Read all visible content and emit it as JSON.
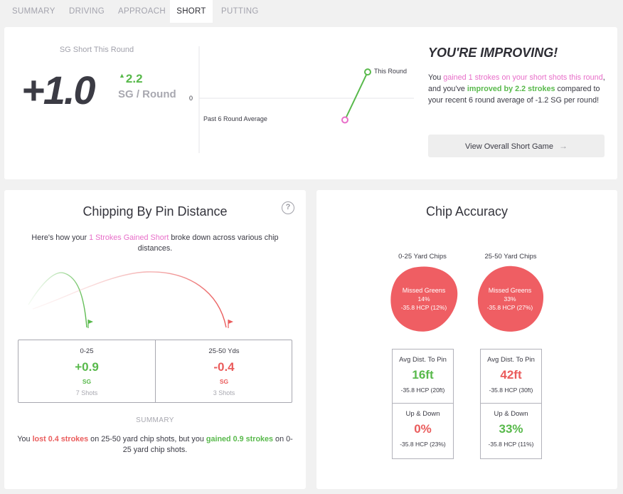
{
  "tabs": [
    {
      "label": "SUMMARY"
    },
    {
      "label": "DRIVING"
    },
    {
      "label": "APPROACH"
    },
    {
      "label": "SHORT",
      "active": true
    },
    {
      "label": "PUTTING"
    }
  ],
  "overview": {
    "label": "SG Short This Round",
    "value": "+1.0",
    "delta": "2.2",
    "unit": "SG / Round",
    "headline": "YOU'RE IMPROVING!",
    "message": {
      "p1": "You ",
      "pink": "gained 1 strokes on your short shots this round",
      "p2": ", and you've ",
      "green": "improved by 2.2 strokes",
      "p3": " compared to your recent 6 round average of -1.2 SG per round!"
    },
    "button": "View Overall Short Game"
  },
  "trend_chart": {
    "zero_label": "0",
    "this_round_label": "This Round",
    "average_label": "Past 6 Round Average",
    "this_round_value": 1.0,
    "average_value": -1.2
  },
  "chipping": {
    "title": "Chipping By Pin Distance",
    "help": "?",
    "intro": {
      "p1": "Here's how your ",
      "pink": "1 Strokes Gained Short",
      "p2": " broke down across various chip distances."
    },
    "columns": [
      {
        "label": "0-25",
        "value": "+0.9",
        "unit": "SG",
        "shots": "7 Shots"
      },
      {
        "label": "25-50 Yds",
        "value": "-0.4",
        "unit": "SG",
        "shots": "3 Shots"
      }
    ],
    "summary_label": "SUMMARY",
    "summary": {
      "p1": "You ",
      "red": "lost 0.4 strokes",
      "p2": " on 25-50 yard chip shots, but you ",
      "green": "gained 0.9 strokes",
      "p3": " on 0-25 yard chip shots."
    }
  },
  "accuracy": {
    "title": "Chip Accuracy",
    "columns": [
      {
        "title": "0-25 Yard Chips",
        "blob_title": "Missed Greens",
        "blob_pct": "14%",
        "blob_hcp": "-35.8 HCP (12%)",
        "avg_label": "Avg Dist. To Pin",
        "avg_value": "16ft",
        "avg_hcp": "-35.8 HCP (20ft)",
        "ud_label": "Up & Down",
        "ud_value": "0%",
        "ud_hcp": "-35.8 HCP (23%)"
      },
      {
        "title": "25-50 Yard Chips",
        "blob_title": "Missed Greens",
        "blob_pct": "33%",
        "blob_hcp": "-35.8 HCP (27%)",
        "avg_label": "Avg Dist. To Pin",
        "avg_value": "42ft",
        "avg_hcp": "-35.8 HCP (30ft)",
        "ud_label": "Up & Down",
        "ud_value": "33%",
        "ud_hcp": "-35.8 HCP (11%)"
      }
    ]
  },
  "colors": {
    "green": "#58b94b",
    "red": "#ea5c5c",
    "pink": "#e86ec9",
    "blob": "#ef5e63",
    "dark_text": "#3a3a44",
    "muted": "#a8a8b0"
  }
}
